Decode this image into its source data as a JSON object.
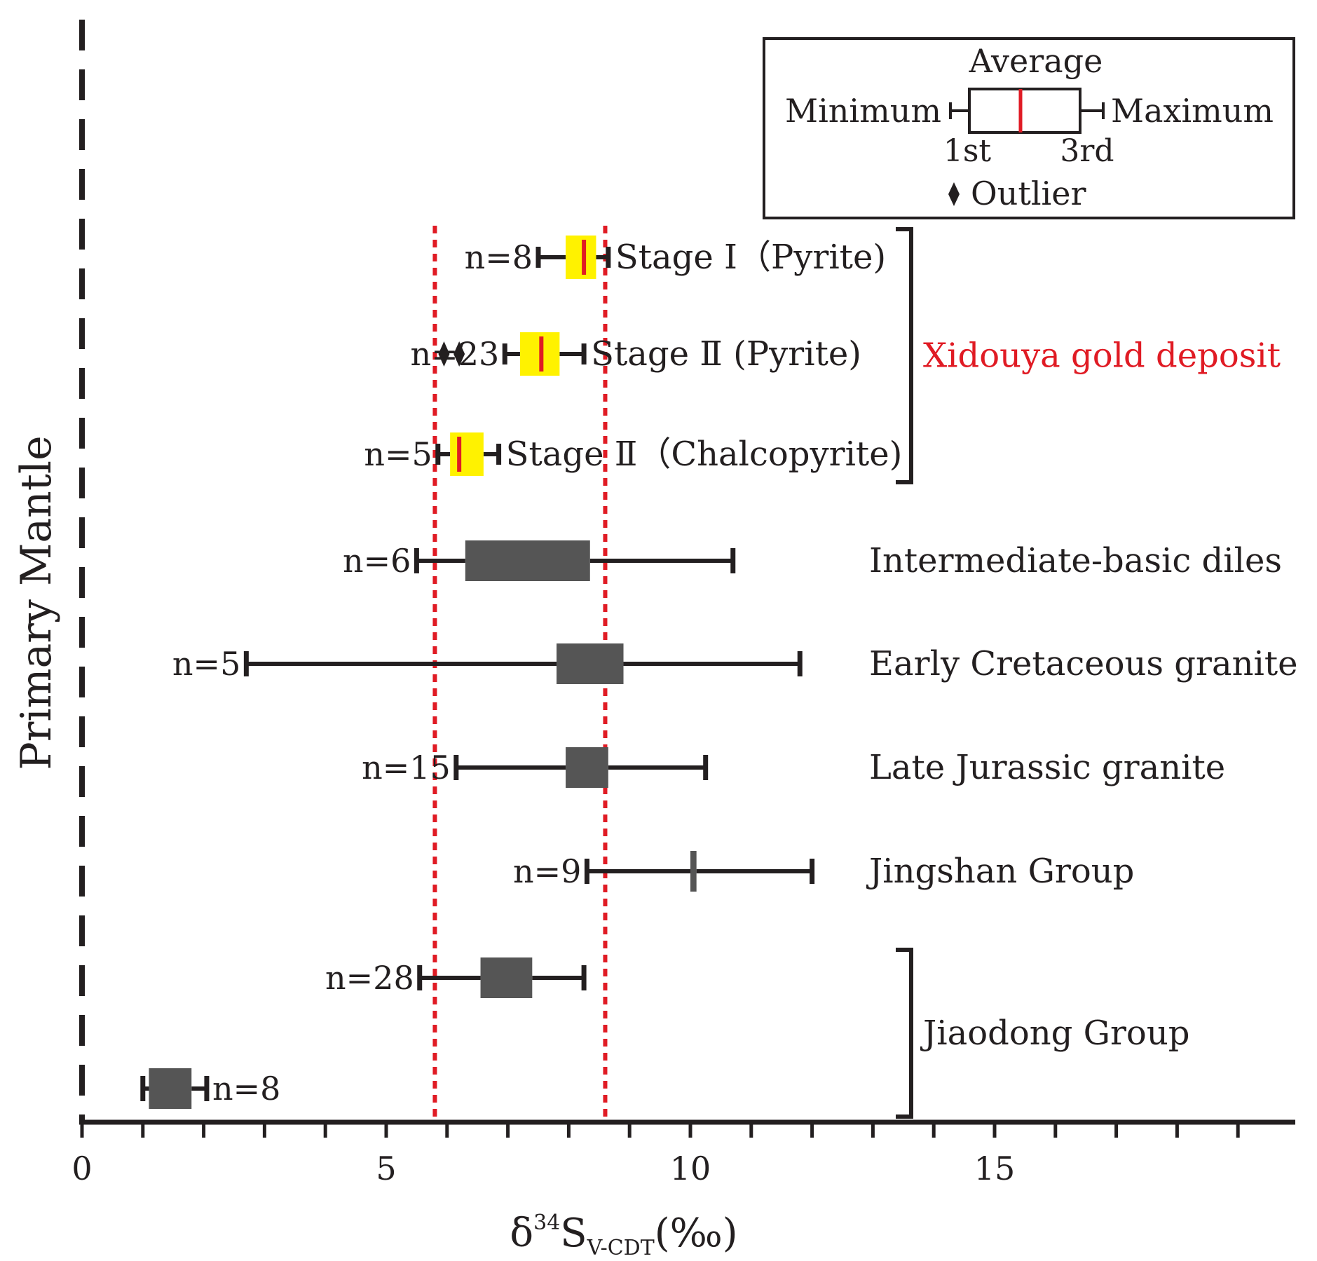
{
  "chart_data": {
    "type": "boxplot",
    "title": "",
    "xlabel_prefix": "δ",
    "xlabel_sup": "34",
    "xlabel_main": "S",
    "xlabel_sub": "V-CDT",
    "xlabel_suffix": "(‰)",
    "xlim": [
      0,
      20
    ],
    "xticks": [
      0,
      5,
      10,
      15
    ],
    "xtick_labels": [
      "0",
      "5",
      "10",
      "15"
    ],
    "minor_step": 1,
    "mantle_label": "Primary Mantle",
    "mantle_x": 0,
    "reference_lines": [
      5.8,
      8.6
    ],
    "colors": {
      "gold_box": "#fff200",
      "gold_avg": "#e01b24",
      "other_box": "#555555",
      "ref_line": "#e01b24",
      "ink": "#231f20",
      "group_label": "#e01b24"
    },
    "series": [
      {
        "id": "stage1-pyrite",
        "label": "Stage Ⅰ（Pyrite)",
        "n_label": "n=8",
        "min": 7.5,
        "q1": 7.95,
        "avg": 8.25,
        "q3": 8.45,
        "max": 8.65,
        "outliers": [],
        "style": "gold"
      },
      {
        "id": "stage2-pyrite",
        "label": "Stage Ⅱ (Pyrite)",
        "n_label": "n=23",
        "min": 6.95,
        "q1": 7.2,
        "avg": 7.55,
        "q3": 7.85,
        "max": 8.25,
        "outliers": [
          5.95,
          6.2
        ],
        "style": "gold"
      },
      {
        "id": "stage2-chalcopyrite",
        "label": "Stage Ⅱ（Chalcopyrite)",
        "n_label": "n=5",
        "min": 5.85,
        "q1": 6.05,
        "avg": 6.2,
        "q3": 6.6,
        "max": 6.85,
        "outliers": [],
        "style": "gold"
      },
      {
        "id": "intermediate-basic-diles",
        "label": "Intermediate-basic diles",
        "n_label": "n=6",
        "min": 5.5,
        "q1": 6.3,
        "avg": null,
        "q3": 8.35,
        "max": 10.7,
        "outliers": [],
        "style": "other"
      },
      {
        "id": "early-cretaceous-granite",
        "label": "Early Cretaceous granite",
        "n_label": "n=5",
        "min": 2.7,
        "q1": 7.8,
        "avg": null,
        "q3": 8.9,
        "max": 11.8,
        "outliers": [],
        "style": "other"
      },
      {
        "id": "late-jurassic-granite",
        "label": "Late Jurassic granite",
        "n_label": "n=15",
        "min": 6.15,
        "q1": 7.95,
        "avg": null,
        "q3": 8.65,
        "max": 10.25,
        "outliers": [],
        "style": "other"
      },
      {
        "id": "jingshan-group",
        "label": "Jingshan Group",
        "n_label": "n=9",
        "min": 8.3,
        "q1": 10.0,
        "avg": null,
        "q3": 10.1,
        "max": 12.0,
        "outliers": [],
        "style": "other"
      },
      {
        "id": "jiaodong-group-a",
        "label": "",
        "n_label": "n=28",
        "min": 5.55,
        "q1": 6.55,
        "avg": null,
        "q3": 7.4,
        "max": 8.25,
        "outliers": [],
        "style": "other"
      },
      {
        "id": "jiaodong-group-b",
        "label": "",
        "n_label": "n=8",
        "min": 1.0,
        "q1": 1.1,
        "avg": null,
        "q3": 1.8,
        "max": 2.05,
        "outliers": [],
        "style": "other"
      }
    ],
    "groups": [
      {
        "id": "xidouya",
        "label": "Xidouya gold deposit",
        "members": [
          "stage1-pyrite",
          "stage2-pyrite",
          "stage2-chalcopyrite"
        ]
      },
      {
        "id": "jiaodong",
        "label": "Jiaodong Group",
        "members": [
          "jiaodong-group-a",
          "jiaodong-group-b"
        ]
      }
    ],
    "legend": {
      "average_label": "Average",
      "minimum_label": "Minimum",
      "maximum_label": "Maximum",
      "q1_label": "1st",
      "q3_label": "3rd",
      "outlier_label": "Outlier",
      "position": "top-right"
    }
  }
}
